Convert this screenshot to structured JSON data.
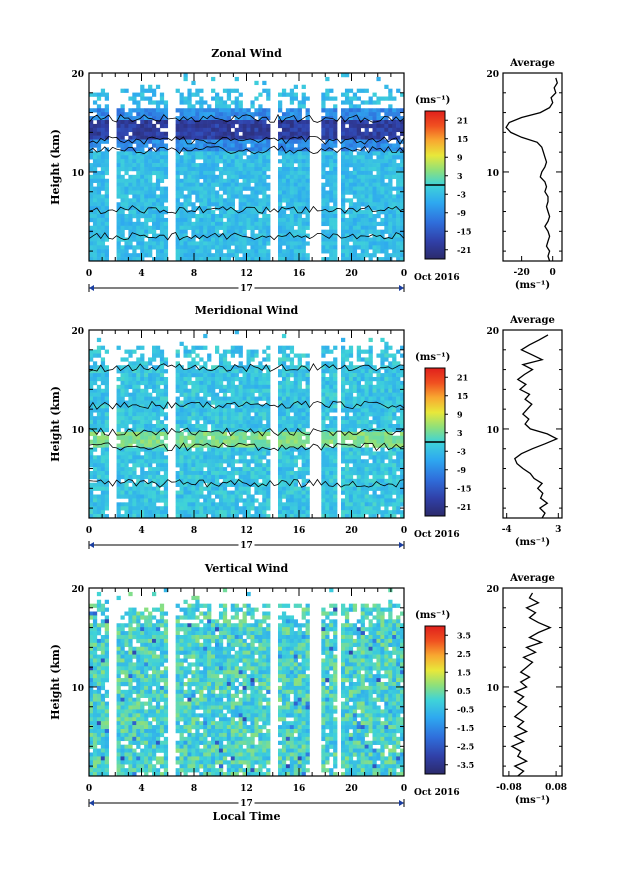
{
  "chart_data": [
    {
      "type": "heatmap",
      "title": "Zonal Wind",
      "ylabel": "Height (km)",
      "xlabel": "",
      "ylim": [
        1,
        20
      ],
      "y_ticks": [
        "20",
        "10"
      ],
      "xlim": [
        0,
        24
      ],
      "x_ticks": [
        "0",
        "4",
        "8",
        "12",
        "16",
        "20",
        "0"
      ],
      "date_marker": "17",
      "date_label": "Oct 2016",
      "colorbar": {
        "unit_label": "(ms⁻¹)",
        "ticks": [
          "21",
          "15",
          "9",
          "3",
          "-3",
          "-9",
          "-15",
          "-21"
        ],
        "range": [
          -24,
          24
        ],
        "zero_contour_value": 0
      },
      "profile": {
        "title": "Average",
        "xlabel": "(ms⁻¹)",
        "x_ticks": [
          "-20",
          "0"
        ],
        "xlim": [
          -32,
          6
        ],
        "y_ticks": [
          "20",
          "10"
        ],
        "points": [
          [
            -2,
            1
          ],
          [
            -3,
            1.5
          ],
          [
            -2,
            2
          ],
          [
            -4,
            2.5
          ],
          [
            -3,
            3
          ],
          [
            -2,
            3.5
          ],
          [
            -3,
            4
          ],
          [
            -5,
            4.5
          ],
          [
            -3,
            5
          ],
          [
            -2,
            5.5
          ],
          [
            -3,
            6
          ],
          [
            -4,
            6.5
          ],
          [
            -3,
            7
          ],
          [
            -3,
            7.5
          ],
          [
            -5,
            8
          ],
          [
            -4,
            8.5
          ],
          [
            -5,
            9
          ],
          [
            -8,
            9.5
          ],
          [
            -7,
            10
          ],
          [
            -5,
            10.5
          ],
          [
            -4,
            11
          ],
          [
            -5,
            11.5
          ],
          [
            -6,
            12
          ],
          [
            -7,
            12.5
          ],
          [
            -10,
            13
          ],
          [
            -20,
            13.5
          ],
          [
            -27,
            14
          ],
          [
            -30,
            14.5
          ],
          [
            -28,
            15
          ],
          [
            -20,
            15.5
          ],
          [
            -8,
            16
          ],
          [
            -2,
            16.5
          ],
          [
            0,
            17
          ],
          [
            -1,
            17.5
          ],
          [
            2,
            18
          ],
          [
            1,
            18.5
          ],
          [
            3,
            19
          ],
          [
            2,
            19.5
          ]
        ]
      }
    },
    {
      "type": "heatmap",
      "title": "Meridional Wind",
      "ylabel": "Height (km)",
      "xlabel": "",
      "ylim": [
        1,
        20
      ],
      "y_ticks": [
        "20",
        "10"
      ],
      "xlim": [
        0,
        24
      ],
      "x_ticks": [
        "0",
        "4",
        "8",
        "12",
        "16",
        "20",
        "0"
      ],
      "date_marker": "17",
      "date_label": "Oct 2016",
      "colorbar": {
        "unit_label": "(ms⁻¹)",
        "ticks": [
          "21",
          "15",
          "9",
          "3",
          "-3",
          "-9",
          "-15",
          "-21"
        ],
        "range": [
          -24,
          24
        ],
        "zero_contour_value": 0
      },
      "profile": {
        "title": "Average",
        "xlabel": "(ms⁻¹)",
        "x_ticks": [
          "-4",
          "3"
        ],
        "xlim": [
          -4.5,
          3.5
        ],
        "y_ticks": [
          "20",
          "10"
        ],
        "points": [
          [
            0.8,
            1
          ],
          [
            1.2,
            1.5
          ],
          [
            0.5,
            2
          ],
          [
            1.5,
            2.5
          ],
          [
            0.6,
            3
          ],
          [
            0.9,
            3.5
          ],
          [
            0.2,
            4
          ],
          [
            0.8,
            4.5
          ],
          [
            -0.3,
            5
          ],
          [
            -0.8,
            5.5
          ],
          [
            -1.8,
            6
          ],
          [
            -2.6,
            6.5
          ],
          [
            -2.9,
            7
          ],
          [
            -2.0,
            7.5
          ],
          [
            -0.5,
            8
          ],
          [
            1.2,
            8.5
          ],
          [
            2.8,
            9
          ],
          [
            1.5,
            9.5
          ],
          [
            -0.8,
            10
          ],
          [
            -1.5,
            10.5
          ],
          [
            -1.0,
            11
          ],
          [
            -1.8,
            11.5
          ],
          [
            -1.2,
            12
          ],
          [
            -0.6,
            12.5
          ],
          [
            -1.5,
            13
          ],
          [
            -0.9,
            13.5
          ],
          [
            -2.2,
            14
          ],
          [
            -1.4,
            14.5
          ],
          [
            -2.5,
            15
          ],
          [
            -1.6,
            15.5
          ],
          [
            -0.5,
            16
          ],
          [
            -1.8,
            16.5
          ],
          [
            0.8,
            17
          ],
          [
            -0.6,
            17.5
          ],
          [
            -2.0,
            18
          ],
          [
            -0.9,
            18.5
          ],
          [
            0.4,
            19
          ],
          [
            1.6,
            19.5
          ]
        ]
      }
    },
    {
      "type": "heatmap",
      "title": "Vertical Wind",
      "ylabel": "Height (km)",
      "xlabel": "Local Time",
      "ylim": [
        1,
        20
      ],
      "y_ticks": [
        "20",
        "10"
      ],
      "xlim": [
        0,
        24
      ],
      "x_ticks": [
        "0",
        "4",
        "8",
        "12",
        "16",
        "20",
        "0"
      ],
      "date_marker": "17",
      "date_label": "Oct 2016",
      "colorbar": {
        "unit_label": "(ms⁻¹)",
        "ticks": [
          "3.5",
          "2.5",
          "1.5",
          "0.5",
          "-0.5",
          "-1.5",
          "-2.5",
          "-3.5"
        ],
        "range": [
          -4,
          4
        ]
      },
      "profile": {
        "title": "Average",
        "xlabel": "(ms⁻¹)",
        "x_ticks": [
          "-0.08",
          "0.08"
        ],
        "xlim": [
          -0.1,
          0.1
        ],
        "y_ticks": [
          "20",
          "10"
        ],
        "points": [
          [
            -0.05,
            1
          ],
          [
            -0.03,
            1.5
          ],
          [
            -0.06,
            2
          ],
          [
            -0.02,
            2.5
          ],
          [
            -0.05,
            3
          ],
          [
            -0.04,
            3.5
          ],
          [
            -0.07,
            4
          ],
          [
            -0.03,
            4.5
          ],
          [
            -0.06,
            5
          ],
          [
            -0.02,
            5.5
          ],
          [
            -0.05,
            6
          ],
          [
            -0.03,
            6.5
          ],
          [
            -0.06,
            7
          ],
          [
            -0.04,
            7.5
          ],
          [
            -0.02,
            8
          ],
          [
            -0.05,
            8.5
          ],
          [
            -0.03,
            9
          ],
          [
            -0.06,
            9.5
          ],
          [
            -0.02,
            10
          ],
          [
            -0.04,
            10.5
          ],
          [
            -0.01,
            11
          ],
          [
            -0.04,
            11.5
          ],
          [
            -0.02,
            12
          ],
          [
            0.0,
            12.5
          ],
          [
            -0.03,
            13
          ],
          [
            0.01,
            13.5
          ],
          [
            -0.02,
            14
          ],
          [
            0.03,
            14.5
          ],
          [
            -0.01,
            15
          ],
          [
            0.02,
            15.5
          ],
          [
            0.06,
            16
          ],
          [
            0.02,
            16.5
          ],
          [
            -0.01,
            17
          ],
          [
            0.01,
            17.5
          ],
          [
            -0.02,
            18
          ],
          [
            0.02,
            18.5
          ],
          [
            -0.01,
            19
          ],
          [
            0.0,
            19.5
          ]
        ]
      }
    }
  ]
}
